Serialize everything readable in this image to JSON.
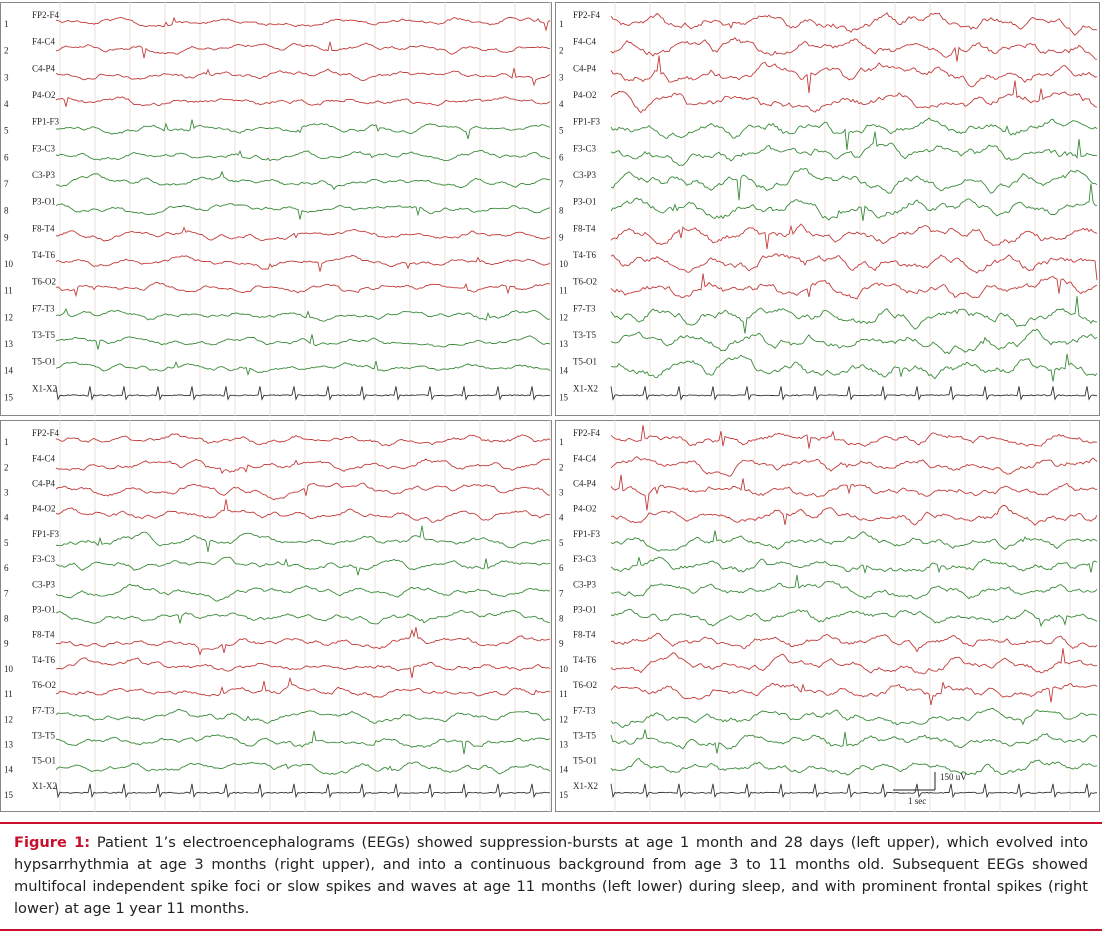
{
  "figure": {
    "channels": [
      "FP2-F4",
      "F4-C4",
      "C4-P4",
      "P4-O2",
      "FP1-F3",
      "F3-C3",
      "C3-P3",
      "P3-O1",
      "F8-T4",
      "T4-T6",
      "T6-O2",
      "F7-T3",
      "T3-T5",
      "T5-O1",
      "X1-X2"
    ],
    "channel_numbers": [
      1,
      2,
      3,
      4,
      5,
      6,
      7,
      8,
      9,
      10,
      11,
      12,
      13,
      14,
      15
    ],
    "scale_bar": {
      "amplitude": "150 uV",
      "time": "1 sec"
    },
    "caption": {
      "label": "Figure 1:",
      "text": "Patient 1’s electroencephalograms (EEGs) showed suppression-bursts at age 1 month and 28 days (left upper), which evolved into hypsarrhythmia at age 3 months (right upper), and into a continuous background from age 3 to 11 months old. Subsequent EEGs showed multifocal independent spike foci or slow spikes and waves at age 11 months (left lower) during sleep, and with prominent frontal spikes (right lower) at age 1 year 11 months."
    }
  }
}
